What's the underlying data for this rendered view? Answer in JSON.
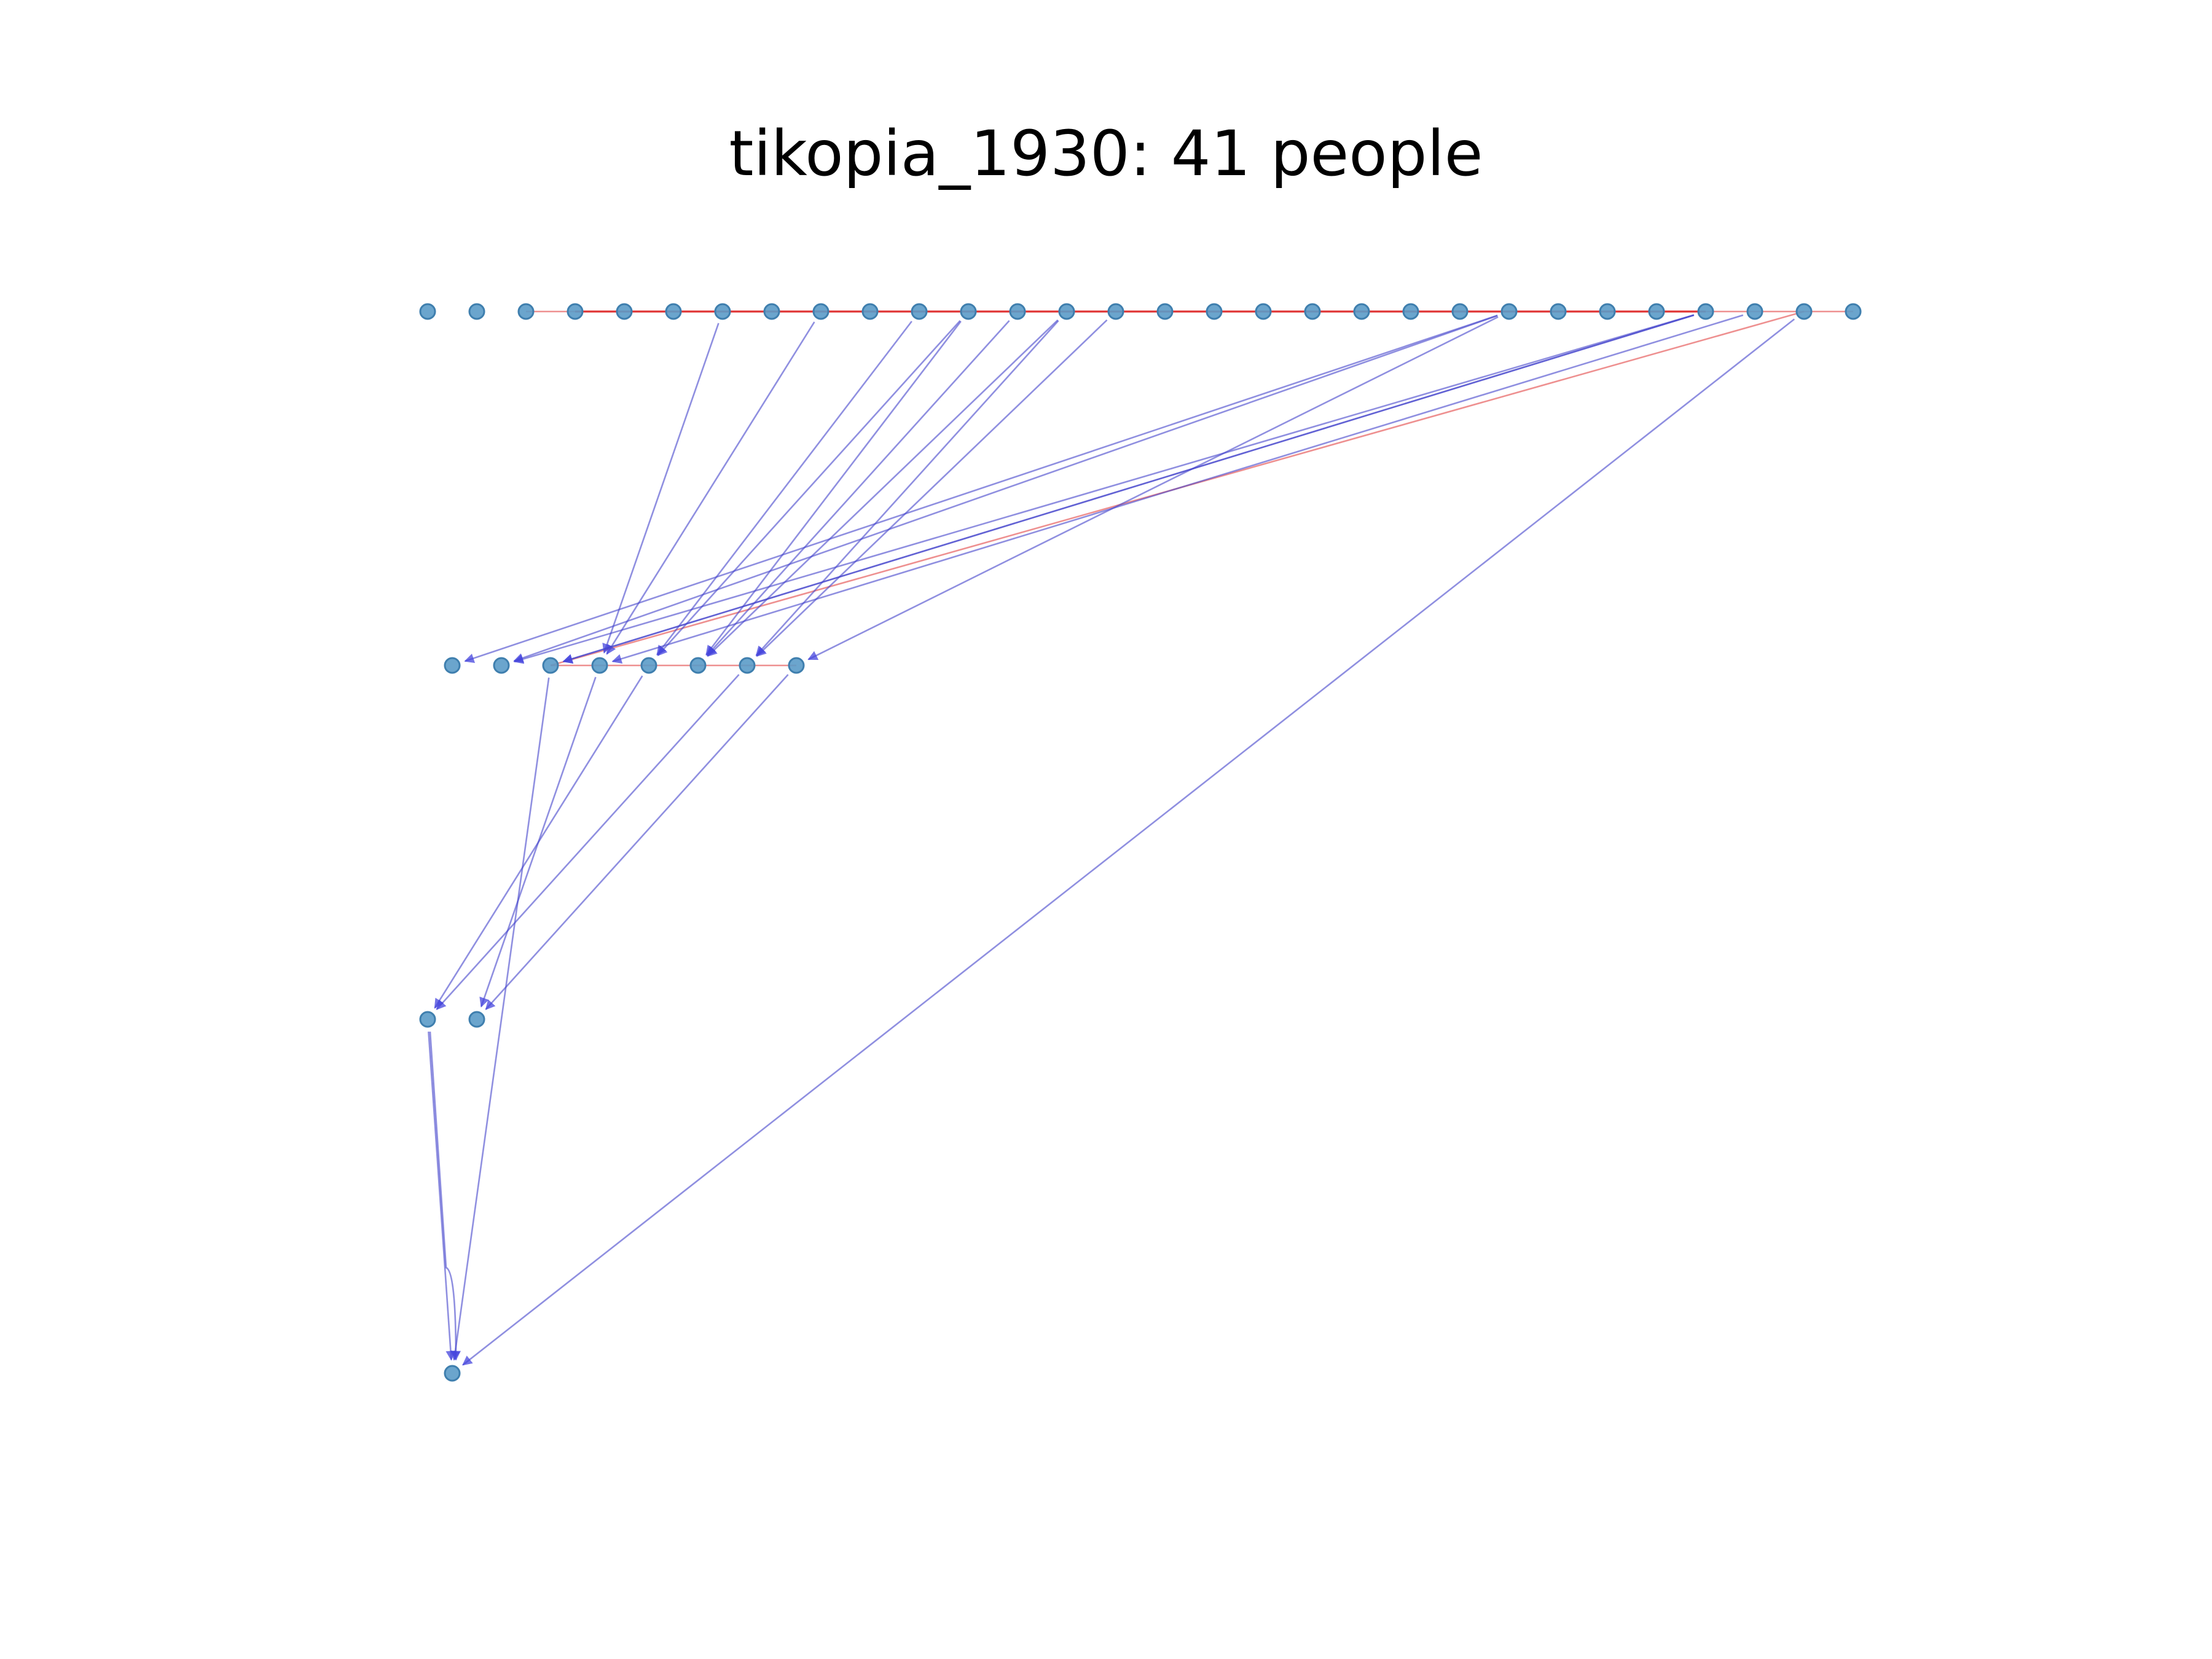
{
  "title": "tikopia_1930: 41 people",
  "colors": {
    "node_fill": "#5b9bc8",
    "node_stroke": "#3f7fae",
    "parent_edge": "#4444cc",
    "spouse_edge": "#dd2222",
    "background": "#ffffff"
  },
  "graph": {
    "generations": [
      {
        "row": 0,
        "count": 30
      },
      {
        "row": 1,
        "count": 8
      },
      {
        "row": 2,
        "count": 2
      },
      {
        "row": 3,
        "count": 1
      }
    ],
    "spouse_edges": [
      {
        "from": [
          0,
          2
        ],
        "to": [
          0,
          29
        ]
      },
      {
        "from": [
          0,
          3
        ],
        "to": [
          0,
          26
        ],
        "strong": true
      },
      {
        "from": [
          1,
          2
        ],
        "to": [
          1,
          7
        ]
      },
      {
        "from": [
          1,
          2
        ],
        "to": [
          0,
          28
        ]
      }
    ],
    "parent_edges": [
      {
        "from": [
          0,
          6
        ],
        "to": [
          1,
          3
        ]
      },
      {
        "from": [
          0,
          8
        ],
        "to": [
          1,
          3
        ]
      },
      {
        "from": [
          0,
          10
        ],
        "to": [
          1,
          4
        ]
      },
      {
        "from": [
          0,
          11
        ],
        "to": [
          1,
          4
        ]
      },
      {
        "from": [
          0,
          11
        ],
        "to": [
          1,
          5
        ]
      },
      {
        "from": [
          0,
          12
        ],
        "to": [
          1,
          5
        ]
      },
      {
        "from": [
          0,
          13
        ],
        "to": [
          1,
          6
        ]
      },
      {
        "from": [
          0,
          13
        ],
        "to": [
          1,
          5
        ]
      },
      {
        "from": [
          0,
          14
        ],
        "to": [
          1,
          6
        ]
      },
      {
        "from": [
          0,
          22
        ],
        "to": [
          1,
          0
        ]
      },
      {
        "from": [
          0,
          22
        ],
        "to": [
          1,
          7
        ]
      },
      {
        "from": [
          0,
          22
        ],
        "to": [
          1,
          1
        ]
      },
      {
        "from": [
          0,
          26
        ],
        "to": [
          1,
          1
        ]
      },
      {
        "from": [
          0,
          26
        ],
        "to": [
          1,
          2
        ]
      },
      {
        "from": [
          0,
          27
        ],
        "to": [
          1,
          3
        ]
      },
      {
        "from": [
          0,
          26
        ],
        "to": [
          1,
          2
        ]
      },
      {
        "from": [
          0,
          28
        ],
        "to": [
          3,
          0
        ]
      },
      {
        "from": [
          1,
          2
        ],
        "to": [
          3,
          0
        ]
      },
      {
        "from": [
          1,
          3
        ],
        "to": [
          2,
          1
        ]
      },
      {
        "from": [
          1,
          4
        ],
        "to": [
          2,
          0
        ]
      },
      {
        "from": [
          1,
          6
        ],
        "to": [
          2,
          0
        ]
      },
      {
        "from": [
          1,
          7
        ],
        "to": [
          2,
          1
        ]
      },
      {
        "from": [
          2,
          0
        ],
        "to": [
          3,
          0
        ]
      },
      {
        "from": [
          2,
          0
        ],
        "to": [
          3,
          0
        ],
        "loop": true
      }
    ]
  }
}
